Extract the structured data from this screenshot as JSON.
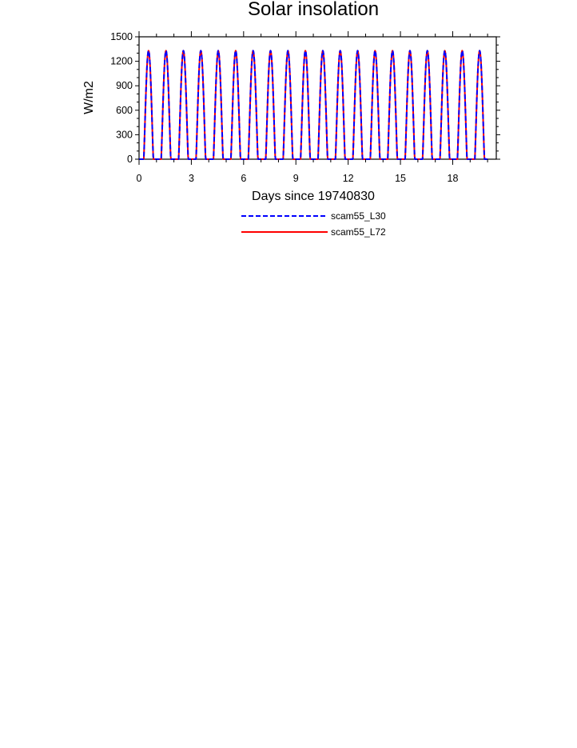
{
  "chart_data": {
    "type": "line",
    "title": "Solar insolation",
    "xlabel": "Days since 19740830",
    "ylabel": "W/m2",
    "xlim": [
      0,
      20.5
    ],
    "ylim": [
      0,
      1500
    ],
    "xticks": [
      0,
      3,
      6,
      9,
      12,
      15,
      18
    ],
    "yticks": [
      0,
      300,
      600,
      900,
      1200,
      1500
    ],
    "grid": false,
    "legend_position": "bottom-center",
    "diurnal_cycle": {
      "days": 20,
      "first_day_offset": 0,
      "sunrise_fraction": 0.27,
      "sunset_fraction": 0.82,
      "peak_value": 1330,
      "samples_per_day": 48
    },
    "series": [
      {
        "name": "scam55_L30",
        "color": "#0000ff",
        "dash": "dashed",
        "peak": 1330
      },
      {
        "name": "scam55_L72",
        "color": "#ff0000",
        "dash": "solid",
        "peak": 1330
      }
    ]
  }
}
